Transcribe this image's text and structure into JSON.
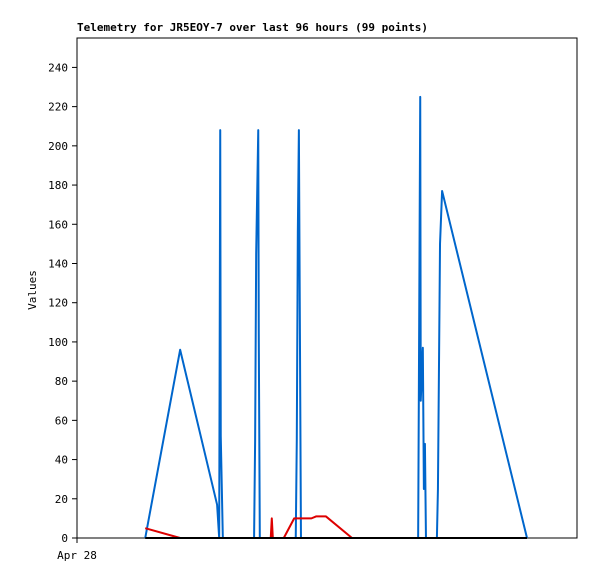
{
  "chart_data": {
    "type": "line",
    "title": "Telemetry for JR5EOY-7 over last 96 hours (99 points)",
    "ylabel": "Values",
    "xlim": [
      0,
      96
    ],
    "xticks": [
      {
        "value": 0,
        "label": "Apr 28"
      }
    ],
    "ylim": [
      0,
      255
    ],
    "yticks": [
      0,
      20,
      40,
      60,
      80,
      100,
      120,
      140,
      160,
      180,
      200,
      220,
      240
    ],
    "series": [
      {
        "color": "#0066cc",
        "x": [
          13.1,
          19.8,
          26.9,
          27.3,
          27.5,
          27.6,
          28.0,
          34.0,
          34.2,
          34.4,
          34.8,
          34.9,
          35.1,
          42.0,
          42.2,
          42.4,
          42.6,
          42.8,
          43.0,
          65.5,
          65.7,
          65.9,
          66.0,
          66.4,
          66.6,
          66.8,
          67.0,
          69.1,
          69.3,
          69.7,
          70.1,
          86.4
        ],
        "values": [
          0,
          96,
          17,
          0,
          208,
          52,
          0,
          0,
          50,
          145,
          208,
          104,
          0,
          0,
          50,
          156,
          208,
          104,
          0,
          0,
          110,
          225,
          70,
          97,
          25,
          48,
          0,
          0,
          25,
          150,
          177,
          0
        ]
      },
      {
        "color": "#dd0000",
        "x": [
          13.1,
          19.8,
          37.2,
          37.4,
          37.6,
          39.7,
          41.7,
          45.0,
          45.9,
          47.8,
          52.8,
          86.4
        ],
        "values": [
          5,
          0,
          0,
          10,
          0,
          0,
          10,
          10,
          11,
          11,
          0,
          0
        ]
      },
      {
        "color": "#000000",
        "x": [
          13.1,
          86.4
        ],
        "values": [
          0,
          0
        ]
      }
    ]
  }
}
